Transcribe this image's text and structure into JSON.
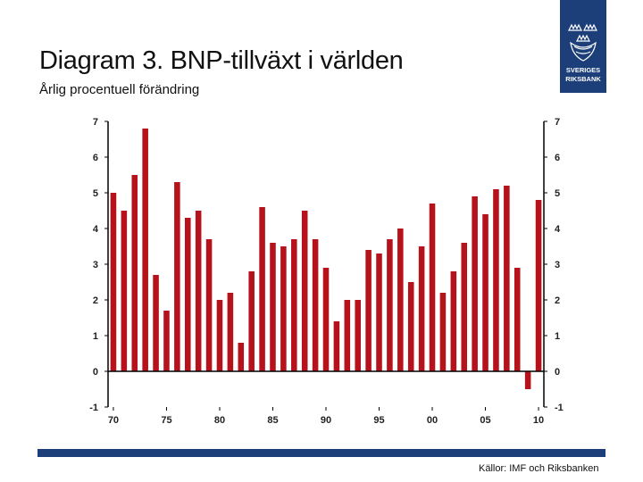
{
  "header": {
    "title": "Diagram 3. BNP-tillväxt i världen",
    "subtitle": "Årlig procentuell förändring"
  },
  "logo": {
    "icon": "sveriges-riksbank-crest-icon",
    "line1": "SVERIGES",
    "line2": "RIKSBANK"
  },
  "footer": {
    "source": "Källor: IMF och Riksbanken"
  },
  "colors": {
    "bar": "#b5121b",
    "brand": "#1c3f7a"
  },
  "chart_data": {
    "type": "bar",
    "title": "Diagram 3. BNP-tillväxt i världen",
    "subtitle": "Årlig procentuell förändring",
    "xlabel": "",
    "ylabel": "",
    "ylim": [
      -1,
      7
    ],
    "yticks": [
      "-1",
      "0",
      "1",
      "2",
      "3",
      "4",
      "5",
      "6",
      "7"
    ],
    "xtick_labels": [
      "70",
      "75",
      "80",
      "85",
      "90",
      "95",
      "00",
      "05",
      "10"
    ],
    "years": [
      1970,
      1971,
      1972,
      1973,
      1974,
      1975,
      1976,
      1977,
      1978,
      1979,
      1980,
      1981,
      1982,
      1983,
      1984,
      1985,
      1986,
      1987,
      1988,
      1989,
      1990,
      1991,
      1992,
      1993,
      1994,
      1995,
      1996,
      1997,
      1998,
      1999,
      2000,
      2001,
      2002,
      2003,
      2004,
      2005,
      2006,
      2007,
      2008,
      2009,
      2010
    ],
    "values": [
      5.0,
      4.5,
      5.5,
      6.8,
      2.7,
      1.7,
      5.3,
      4.3,
      4.5,
      3.7,
      2.0,
      2.2,
      0.8,
      2.8,
      4.6,
      3.6,
      3.5,
      3.7,
      4.5,
      3.7,
      2.9,
      1.4,
      2.0,
      2.0,
      3.4,
      3.3,
      3.7,
      4.0,
      2.5,
      3.5,
      4.7,
      2.2,
      2.8,
      3.6,
      4.9,
      4.4,
      5.1,
      5.2,
      2.9,
      -0.5,
      4.8
    ],
    "grid": false,
    "legend": "none"
  }
}
